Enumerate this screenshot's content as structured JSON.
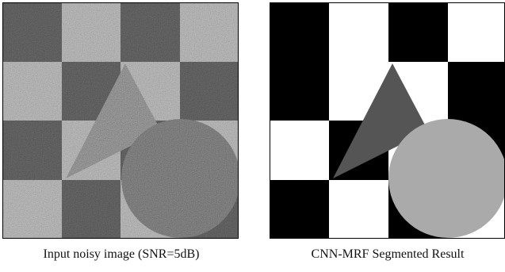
{
  "left_caption": "Input noisy image (SNR=5dB)",
  "right_caption": "CNN-MRF Segmented Result"
}
